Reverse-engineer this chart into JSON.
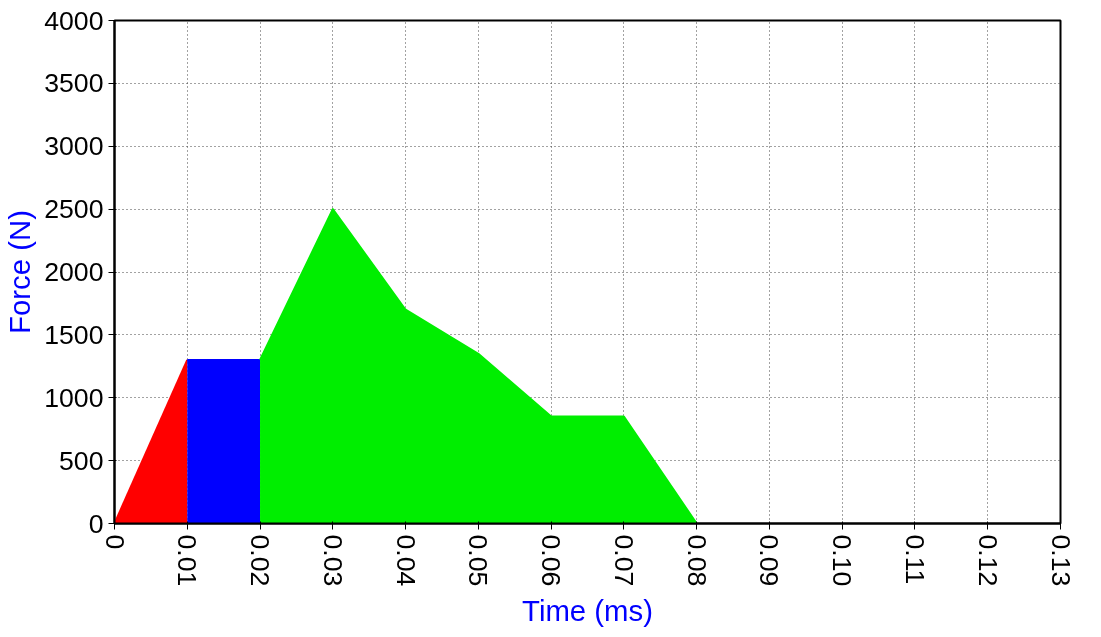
{
  "chart_data": {
    "type": "area",
    "xlabel": "Time (ms)",
    "ylabel": "Force (N)",
    "series": [
      {
        "color": "#ff0000",
        "x": [
          0,
          0.01
        ],
        "values": [
          0,
          1300
        ]
      },
      {
        "color": "#0000ff",
        "x": [
          0.01,
          0.02
        ],
        "values": [
          1300,
          1300
        ]
      },
      {
        "color": "#00ee00",
        "x": [
          0.02,
          0.03,
          0.04,
          0.05,
          0.06,
          0.07,
          0.08
        ],
        "values": [
          1300,
          2500,
          1700,
          1350,
          850,
          850,
          0
        ]
      }
    ],
    "xlim": [
      0,
      0.13
    ],
    "xticks": [
      0,
      0.01,
      0.02,
      0.03,
      0.04,
      0.05,
      0.06,
      0.07,
      0.08,
      0.09,
      {
        "value": 0.1,
        "label": "0.10"
      },
      0.11,
      0.12,
      0.13
    ],
    "ylim": [
      0,
      4000
    ],
    "yticks": [
      0,
      500,
      1000,
      1500,
      2000,
      2500,
      3000,
      3500,
      4000
    ],
    "grid": true,
    "line_style": "solid"
  }
}
